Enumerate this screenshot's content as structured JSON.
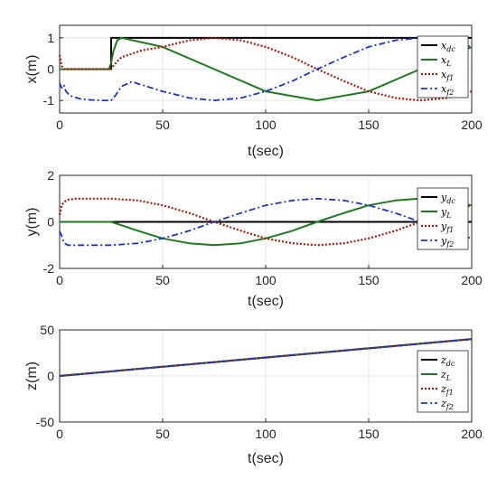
{
  "chart_data": [
    {
      "type": "line",
      "xlabel": "t(sec)",
      "ylabel": "x(m)",
      "xlim": [
        0,
        200
      ],
      "ylim": [
        -1.4,
        1.4
      ],
      "xticks": [
        "0",
        "50",
        "100",
        "150",
        "200"
      ],
      "yticks": [
        "-1",
        "0",
        "1"
      ],
      "ytick_values": [
        -1,
        0,
        1
      ],
      "grid": true,
      "legend_position": "right",
      "series": [
        {
          "name": "x_dc",
          "legend": [
            "x",
            "dc"
          ],
          "color": "#000000",
          "style": "solid",
          "x": [
            0,
            24,
            24,
            25,
            25,
            200
          ],
          "y": [
            0,
            0,
            0,
            0,
            1,
            1
          ]
        },
        {
          "name": "x_L",
          "legend": [
            "x",
            "L"
          ],
          "color": "#1e7a1e",
          "style": "solid",
          "x": [
            0,
            24,
            25,
            26,
            27,
            28,
            30,
            50,
            75,
            100,
            125,
            150,
            175,
            200
          ],
          "y": [
            0,
            0,
            0.2,
            0.55,
            0.75,
            0.92,
            1,
            0.71,
            0,
            -0.71,
            -1,
            -0.71,
            0,
            0.71
          ]
        },
        {
          "name": "x_f1",
          "legend": [
            "x",
            "f1"
          ],
          "color": "#a51b0b",
          "style": "dotted",
          "x": [
            0,
            1,
            2,
            3,
            10,
            20,
            25,
            26,
            28,
            30,
            40,
            50,
            63,
            75,
            88,
            100,
            113,
            125,
            138,
            150,
            163,
            175,
            188,
            200
          ],
          "y": [
            0.45,
            0.1,
            0,
            0,
            0,
            0,
            0,
            0.1,
            0.25,
            0.38,
            0.6,
            0.71,
            0.92,
            1,
            0.92,
            0.71,
            0.38,
            0,
            -0.38,
            -0.71,
            -0.92,
            -1,
            -0.92,
            -0.71
          ]
        },
        {
          "name": "x_f2",
          "legend": [
            "x",
            "f2"
          ],
          "color": "#1c33c7",
          "style": "dashdot",
          "x": [
            0,
            1,
            2,
            3,
            5,
            10,
            15,
            20,
            25,
            27,
            30,
            35,
            50,
            63,
            75,
            88,
            100,
            113,
            125,
            138,
            150,
            163,
            175,
            188,
            200
          ],
          "y": [
            -0.45,
            -0.6,
            -0.5,
            -0.7,
            -0.85,
            -0.95,
            -0.98,
            -1,
            -1,
            -0.85,
            -0.55,
            -0.4,
            -0.71,
            -0.92,
            -1,
            -0.92,
            -0.71,
            -0.38,
            0,
            0.38,
            0.71,
            0.92,
            1,
            0.92,
            0.71
          ]
        }
      ]
    },
    {
      "type": "line",
      "xlabel": "t(sec)",
      "ylabel": "y(m)",
      "xlim": [
        0,
        200
      ],
      "ylim": [
        -2,
        2
      ],
      "xticks": [
        "0",
        "50",
        "100",
        "150",
        "200"
      ],
      "yticks": [
        "-2",
        "0",
        "2"
      ],
      "ytick_values": [
        -2,
        0,
        2
      ],
      "grid": true,
      "legend_position": "right",
      "series": [
        {
          "name": "y_dc",
          "legend": [
            "y",
            "dc"
          ],
          "color": "#000000",
          "style": "solid",
          "x": [
            0,
            25,
            200
          ],
          "y": [
            0,
            0,
            0
          ]
        },
        {
          "name": "y_L",
          "legend": [
            "y",
            "L"
          ],
          "color": "#1e7a1e",
          "style": "solid",
          "x": [
            0,
            25,
            38,
            50,
            63,
            75,
            88,
            100,
            113,
            125,
            138,
            150,
            163,
            175,
            188,
            200
          ],
          "y": [
            0,
            0,
            -0.38,
            -0.71,
            -0.92,
            -1,
            -0.92,
            -0.71,
            -0.38,
            0,
            0.38,
            0.71,
            0.92,
            1,
            0.92,
            0.71
          ]
        },
        {
          "name": "y_f1",
          "legend": [
            "y",
            "f1"
          ],
          "color": "#a51b0b",
          "style": "dotted",
          "x": [
            0,
            1,
            2,
            4,
            8,
            13,
            25,
            38,
            50,
            63,
            75,
            88,
            100,
            113,
            125,
            138,
            150,
            163,
            175,
            188,
            200
          ],
          "y": [
            0.3,
            0.7,
            0.85,
            0.95,
            1,
            1,
            1,
            0.92,
            0.71,
            0.38,
            0,
            -0.38,
            -0.71,
            -0.92,
            -1,
            -0.92,
            -0.71,
            -0.38,
            0,
            0.38,
            0.71
          ]
        },
        {
          "name": "y_f2",
          "legend": [
            "y",
            "f2"
          ],
          "color": "#1c33c7",
          "style": "dashdot",
          "x": [
            0,
            1,
            2,
            4,
            8,
            13,
            25,
            38,
            50,
            63,
            75,
            88,
            100,
            113,
            125,
            138,
            150,
            163,
            175,
            188,
            200
          ],
          "y": [
            -0.4,
            -0.6,
            -0.9,
            -1,
            -1,
            -1,
            -1,
            -0.92,
            -0.71,
            -0.38,
            0,
            0.38,
            0.71,
            0.92,
            1,
            0.92,
            0.71,
            0.38,
            0,
            -0.38,
            -0.71
          ]
        }
      ]
    },
    {
      "type": "line",
      "xlabel": "t(sec)",
      "ylabel": "z(m)",
      "xlim": [
        0,
        200
      ],
      "ylim": [
        -50,
        50
      ],
      "xticks": [
        "0",
        "50",
        "100",
        "150",
        "200"
      ],
      "yticks": [
        "-50",
        "0",
        "50"
      ],
      "ytick_values": [
        -50,
        0,
        50
      ],
      "grid": true,
      "legend_position": "right",
      "series": [
        {
          "name": "z_dc",
          "legend": [
            "z",
            "dc"
          ],
          "color": "#000000",
          "style": "solid",
          "x": [
            0,
            200
          ],
          "y": [
            0,
            40
          ]
        },
        {
          "name": "z_L",
          "legend": [
            "z",
            "L"
          ],
          "color": "#1e7a1e",
          "style": "solid",
          "x": [
            0,
            200
          ],
          "y": [
            0,
            40
          ]
        },
        {
          "name": "z_f1",
          "legend": [
            "z",
            "f1"
          ],
          "color": "#a51b0b",
          "style": "dotted",
          "x": [
            0,
            200
          ],
          "y": [
            0,
            40
          ]
        },
        {
          "name": "z_f2",
          "legend": [
            "z",
            "f2"
          ],
          "color": "#1c33c7",
          "style": "dashdot",
          "x": [
            0,
            200
          ],
          "y": [
            0,
            40
          ]
        }
      ]
    }
  ]
}
